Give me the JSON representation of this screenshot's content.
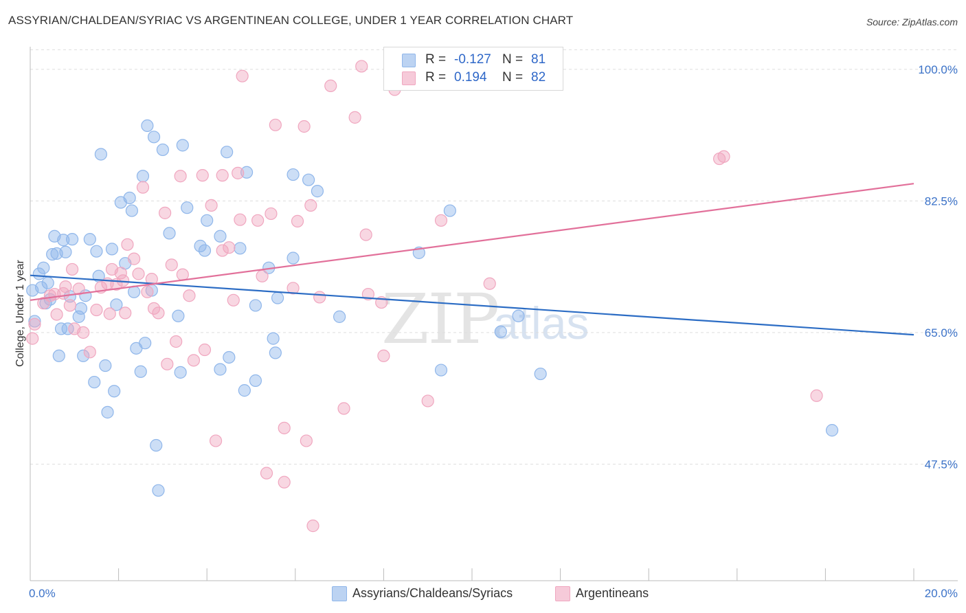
{
  "header": {
    "title": "ASSYRIAN/CHALDEAN/SYRIAC VS ARGENTINEAN COLLEGE, UNDER 1 YEAR CORRELATION CHART",
    "source": "Source: ZipAtlas.com"
  },
  "watermark": {
    "part1": "ZIP",
    "part2": "atlas"
  },
  "legend_top": {
    "rows": [
      {
        "r_label": "R =",
        "r_value": "-0.127",
        "n_label": "N =",
        "n_value": "81",
        "color": "#8fb6ea"
      },
      {
        "r_label": "R =",
        "r_value": "0.194",
        "n_label": "N =",
        "n_value": "82",
        "color": "#f0a6bf"
      }
    ]
  },
  "legend_bottom": {
    "items": [
      {
        "label": "Assyrians/Chaldeans/Syriacs",
        "color": "#8fb6ea"
      },
      {
        "label": "Argentineans",
        "color": "#f0a6bf"
      }
    ]
  },
  "chart_data": {
    "type": "scatter",
    "title": "ASSYRIAN/CHALDEAN/SYRIAC VS ARGENTINEAN COLLEGE, UNDER 1 YEAR CORRELATION CHART",
    "xlabel": "",
    "ylabel": "College, Under 1 year",
    "xlim": [
      0,
      20
    ],
    "ylim": [
      32,
      103
    ],
    "x_tick_labels": [
      "0.0%",
      "20.0%"
    ],
    "y_ticks": [
      47.5,
      65.0,
      82.5,
      100.0
    ],
    "y_tick_labels": [
      "47.5%",
      "65.0%",
      "82.5%",
      "100.0%"
    ],
    "grid": true,
    "legend_position": "top-center",
    "series": [
      {
        "name": "Assyrians/Chaldeans/Syriacs",
        "color": "#8fb6ea",
        "line_color": "#2b6cc4",
        "trend": [
          [
            0,
            72.6
          ],
          [
            20,
            64.7
          ]
        ],
        "points": [
          [
            0.05,
            70.6
          ],
          [
            0.1,
            66.5
          ],
          [
            0.2,
            72.8
          ],
          [
            0.25,
            71.0
          ],
          [
            0.3,
            73.6
          ],
          [
            0.35,
            68.9
          ],
          [
            0.4,
            71.6
          ],
          [
            0.45,
            69.4
          ],
          [
            0.5,
            75.4
          ],
          [
            0.55,
            77.8
          ],
          [
            0.6,
            75.5
          ],
          [
            0.65,
            61.9
          ],
          [
            0.7,
            65.5
          ],
          [
            0.75,
            77.3
          ],
          [
            0.8,
            75.7
          ],
          [
            0.85,
            65.5
          ],
          [
            0.9,
            69.8
          ],
          [
            0.95,
            77.4
          ],
          [
            1.1,
            67.1
          ],
          [
            1.15,
            68.2
          ],
          [
            1.2,
            61.9
          ],
          [
            1.25,
            69.9
          ],
          [
            1.35,
            77.4
          ],
          [
            1.45,
            58.4
          ],
          [
            1.5,
            75.8
          ],
          [
            1.55,
            72.5
          ],
          [
            1.6,
            88.7
          ],
          [
            1.7,
            60.6
          ],
          [
            1.75,
            54.4
          ],
          [
            1.85,
            76.1
          ],
          [
            1.9,
            57.2
          ],
          [
            1.95,
            68.7
          ],
          [
            2.05,
            82.3
          ],
          [
            2.15,
            74.2
          ],
          [
            2.25,
            82.9
          ],
          [
            2.3,
            81.2
          ],
          [
            2.35,
            70.4
          ],
          [
            2.4,
            62.9
          ],
          [
            2.5,
            59.8
          ],
          [
            2.55,
            85.8
          ],
          [
            2.6,
            63.6
          ],
          [
            2.65,
            92.5
          ],
          [
            2.75,
            70.6
          ],
          [
            2.8,
            91.0
          ],
          [
            2.85,
            50.0
          ],
          [
            2.9,
            44.0
          ],
          [
            3.0,
            89.3
          ],
          [
            3.15,
            78.2
          ],
          [
            3.35,
            67.2
          ],
          [
            3.4,
            59.7
          ],
          [
            3.45,
            89.9
          ],
          [
            3.55,
            81.6
          ],
          [
            3.85,
            76.5
          ],
          [
            3.95,
            75.9
          ],
          [
            4.0,
            79.9
          ],
          [
            4.3,
            60.1
          ],
          [
            4.3,
            77.8
          ],
          [
            4.45,
            89.0
          ],
          [
            4.5,
            61.7
          ],
          [
            4.75,
            76.2
          ],
          [
            4.85,
            57.3
          ],
          [
            4.9,
            86.3
          ],
          [
            5.1,
            68.6
          ],
          [
            5.1,
            58.6
          ],
          [
            5.4,
            73.6
          ],
          [
            5.5,
            64.2
          ],
          [
            5.55,
            62.3
          ],
          [
            5.6,
            69.6
          ],
          [
            5.95,
            86.0
          ],
          [
            5.95,
            74.9
          ],
          [
            6.3,
            85.3
          ],
          [
            6.5,
            83.8
          ],
          [
            7.0,
            67.1
          ],
          [
            8.8,
            75.6
          ],
          [
            9.3,
            60.0
          ],
          [
            9.5,
            81.2
          ],
          [
            10.65,
            65.1
          ],
          [
            11.05,
            67.2
          ],
          [
            11.55,
            59.5
          ],
          [
            18.15,
            52.0
          ]
        ]
      },
      {
        "name": "Argentineans",
        "color": "#f0a6bf",
        "line_color": "#e2709a",
        "trend": [
          [
            0,
            69.3
          ],
          [
            20,
            84.8
          ]
        ],
        "points": [
          [
            0.05,
            64.2
          ],
          [
            0.1,
            66.1
          ],
          [
            0.3,
            68.9
          ],
          [
            0.45,
            69.9
          ],
          [
            0.55,
            70.1
          ],
          [
            0.6,
            67.4
          ],
          [
            0.75,
            70.2
          ],
          [
            0.8,
            71.1
          ],
          [
            0.9,
            68.6
          ],
          [
            0.95,
            73.4
          ],
          [
            1.0,
            65.5
          ],
          [
            1.1,
            70.8
          ],
          [
            1.2,
            65.0
          ],
          [
            1.35,
            62.4
          ],
          [
            1.5,
            68.0
          ],
          [
            1.6,
            71.0
          ],
          [
            1.75,
            71.5
          ],
          [
            1.8,
            67.5
          ],
          [
            1.85,
            73.4
          ],
          [
            1.95,
            71.4
          ],
          [
            2.05,
            72.9
          ],
          [
            2.1,
            71.9
          ],
          [
            2.15,
            67.6
          ],
          [
            2.2,
            76.7
          ],
          [
            2.35,
            74.8
          ],
          [
            2.45,
            72.8
          ],
          [
            2.55,
            84.3
          ],
          [
            2.65,
            70.4
          ],
          [
            2.75,
            72.1
          ],
          [
            2.8,
            68.2
          ],
          [
            2.9,
            67.6
          ],
          [
            3.05,
            80.9
          ],
          [
            3.1,
            60.8
          ],
          [
            3.2,
            74.0
          ],
          [
            3.3,
            63.8
          ],
          [
            3.4,
            85.8
          ],
          [
            3.45,
            72.7
          ],
          [
            3.6,
            69.9
          ],
          [
            3.7,
            61.3
          ],
          [
            3.9,
            85.9
          ],
          [
            3.95,
            62.7
          ],
          [
            4.1,
            81.9
          ],
          [
            4.2,
            50.6
          ],
          [
            4.35,
            75.9
          ],
          [
            4.35,
            85.9
          ],
          [
            4.5,
            76.3
          ],
          [
            4.6,
            69.3
          ],
          [
            4.7,
            86.2
          ],
          [
            4.75,
            80.0
          ],
          [
            4.8,
            99.1
          ],
          [
            5.15,
            79.9
          ],
          [
            5.25,
            72.5
          ],
          [
            5.35,
            46.3
          ],
          [
            5.45,
            80.8
          ],
          [
            5.55,
            92.6
          ],
          [
            5.75,
            45.1
          ],
          [
            5.75,
            52.3
          ],
          [
            5.95,
            70.9
          ],
          [
            6.05,
            79.8
          ],
          [
            6.2,
            92.4
          ],
          [
            6.25,
            50.6
          ],
          [
            6.35,
            81.9
          ],
          [
            6.4,
            39.3
          ],
          [
            6.55,
            69.7
          ],
          [
            6.8,
            97.8
          ],
          [
            7.1,
            54.9
          ],
          [
            7.35,
            93.6
          ],
          [
            7.5,
            100.4
          ],
          [
            7.6,
            78.0
          ],
          [
            7.65,
            70.1
          ],
          [
            7.95,
            69.0
          ],
          [
            8.0,
            61.9
          ],
          [
            8.25,
            97.3
          ],
          [
            9.0,
            55.9
          ],
          [
            9.3,
            79.9
          ],
          [
            9.5,
            100.4
          ],
          [
            10.4,
            71.5
          ],
          [
            15.6,
            88.1
          ],
          [
            15.7,
            88.4
          ],
          [
            17.8,
            56.6
          ]
        ]
      }
    ]
  }
}
